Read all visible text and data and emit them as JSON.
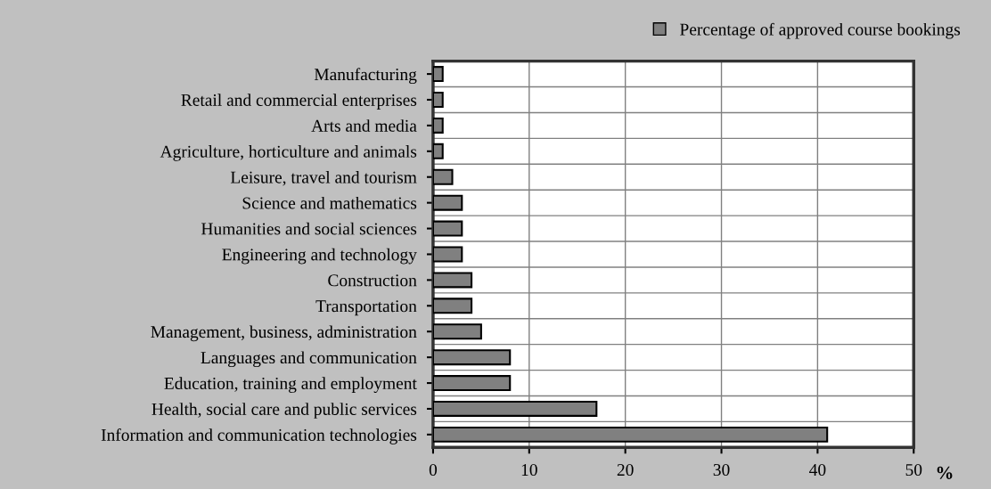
{
  "chart_data": {
    "type": "bar",
    "orientation": "horizontal",
    "categories": [
      "Manufacturing",
      "Retail and commercial enterprises",
      "Arts and media",
      "Agriculture, horticulture and animals",
      "Leisure, travel and tourism",
      "Science and mathematics",
      "Humanities and social sciences",
      "Engineering and technology",
      "Construction",
      "Transportation",
      "Management, business, administration",
      "Languages and communication",
      "Education, training and employment",
      "Health, social care and public services",
      "Information and communication technologies"
    ],
    "series": [
      {
        "name": "Percentage of approved course bookings",
        "color": "#808080",
        "values": [
          1,
          1,
          1,
          1,
          2,
          3,
          3,
          3,
          4,
          4,
          5,
          8,
          8,
          17,
          41
        ]
      }
    ],
    "xlim": [
      0,
      50
    ],
    "xticks": [
      0,
      10,
      20,
      30,
      40,
      50
    ],
    "xlabel": "%",
    "grid": true,
    "legend": "top right"
  }
}
